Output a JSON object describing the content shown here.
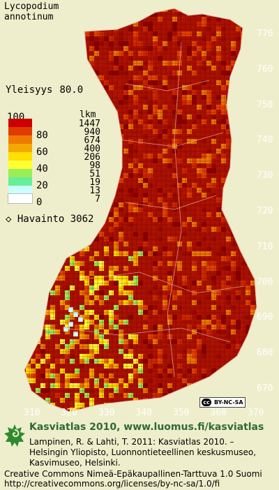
{
  "species": {
    "genus": "Lycopodium",
    "epithet": "annotinum"
  },
  "frequency": {
    "label": "Yleisyys",
    "value": "80.0"
  },
  "legend": {
    "percent_title": "100",
    "count_title": "lkm",
    "percent_labels": [
      "80",
      "60",
      "40",
      "20",
      "0"
    ],
    "counts": [
      "1447",
      "940",
      "674",
      "400",
      "206",
      "98",
      "51",
      "19",
      "13",
      "7"
    ],
    "colors": [
      "#cc0000",
      "#e03a00",
      "#f07a00",
      "#f5a800",
      "#ffe000",
      "#ffff33",
      "#99ee55",
      "#66ee99",
      "#ccffff",
      "#ffffff"
    ]
  },
  "observations": {
    "label": "Havainto",
    "value": "3062"
  },
  "axis": {
    "y_ticks": [
      "770",
      "760",
      "750",
      "740",
      "730",
      "720",
      "710",
      "700",
      "690",
      "680",
      "670"
    ],
    "x_ticks": [
      "310",
      "320",
      "330",
      "340",
      "350",
      "360",
      "370"
    ]
  },
  "license_badge": {
    "text": "BY-NC-SA"
  },
  "footer": {
    "site": "Kasviatlas 2010, www.luomus.fi/kasviatlas",
    "citation_lines": [
      "Lampinen, R. & Lahti, T. 2011: Kasviatlas 2010. –",
      "Helsingin Yliopisto, Luonnontieteellinen keskusmuseo,",
      "Kasvimuseo, Helsinki."
    ],
    "license_line1": "Creative Commons Nimeä-Epäkaupallinen-Tarttuva 1.0 Suomi",
    "license_line2": "http://creativecommons.org/licenses/by-nc-sa/1.0/fi"
  },
  "colors": {
    "background": "#eeeecc",
    "map_red": "#aa1100",
    "site_green": "#2f6b2f"
  }
}
